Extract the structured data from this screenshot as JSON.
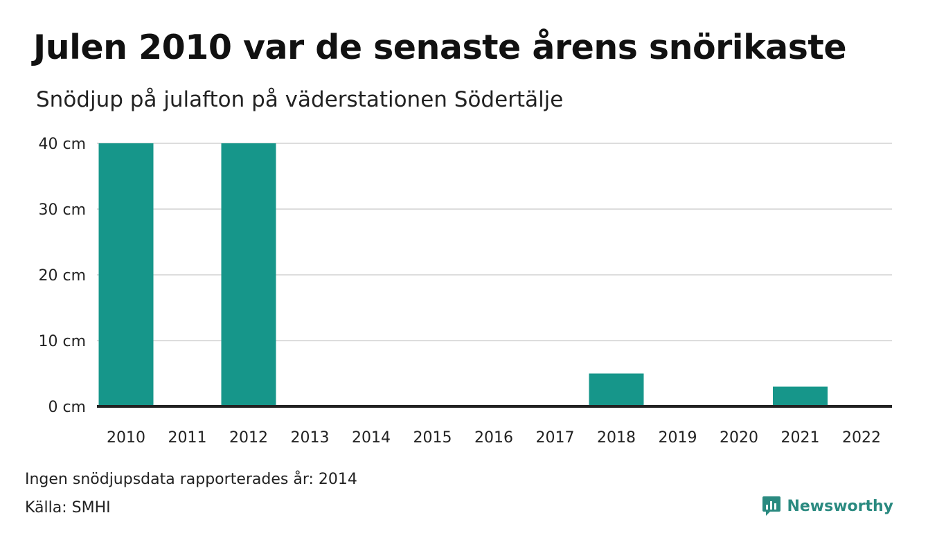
{
  "title": "Julen 2010 var de senaste årens snörikaste",
  "subtitle": "Snödjup på julafton på väderstationen Södertälje",
  "footnote": "Ingen snödjupsdata rapporterades år: 2014",
  "source": "Källa: SMHI",
  "brand": {
    "name": "Newsworthy",
    "icon": "newsworthy-logo-icon",
    "color": "#2a8a80"
  },
  "colors": {
    "bar": "#16968a",
    "grid": "#dddddd",
    "baseline": "#222222"
  },
  "chart_data": {
    "type": "bar",
    "categories": [
      "2010",
      "2011",
      "2012",
      "2013",
      "2014",
      "2015",
      "2016",
      "2017",
      "2018",
      "2019",
      "2020",
      "2021",
      "2022"
    ],
    "values": [
      40,
      0,
      40,
      0,
      null,
      0,
      0,
      0,
      5,
      0,
      0,
      3,
      0
    ],
    "yticks": [
      "0 cm",
      "10 cm",
      "20 cm",
      "30 cm",
      "40 cm"
    ],
    "ytick_values": [
      0,
      10,
      20,
      30,
      40
    ],
    "ylim": [
      0,
      40
    ],
    "grid": true,
    "xlabel": "",
    "ylabel": ""
  }
}
